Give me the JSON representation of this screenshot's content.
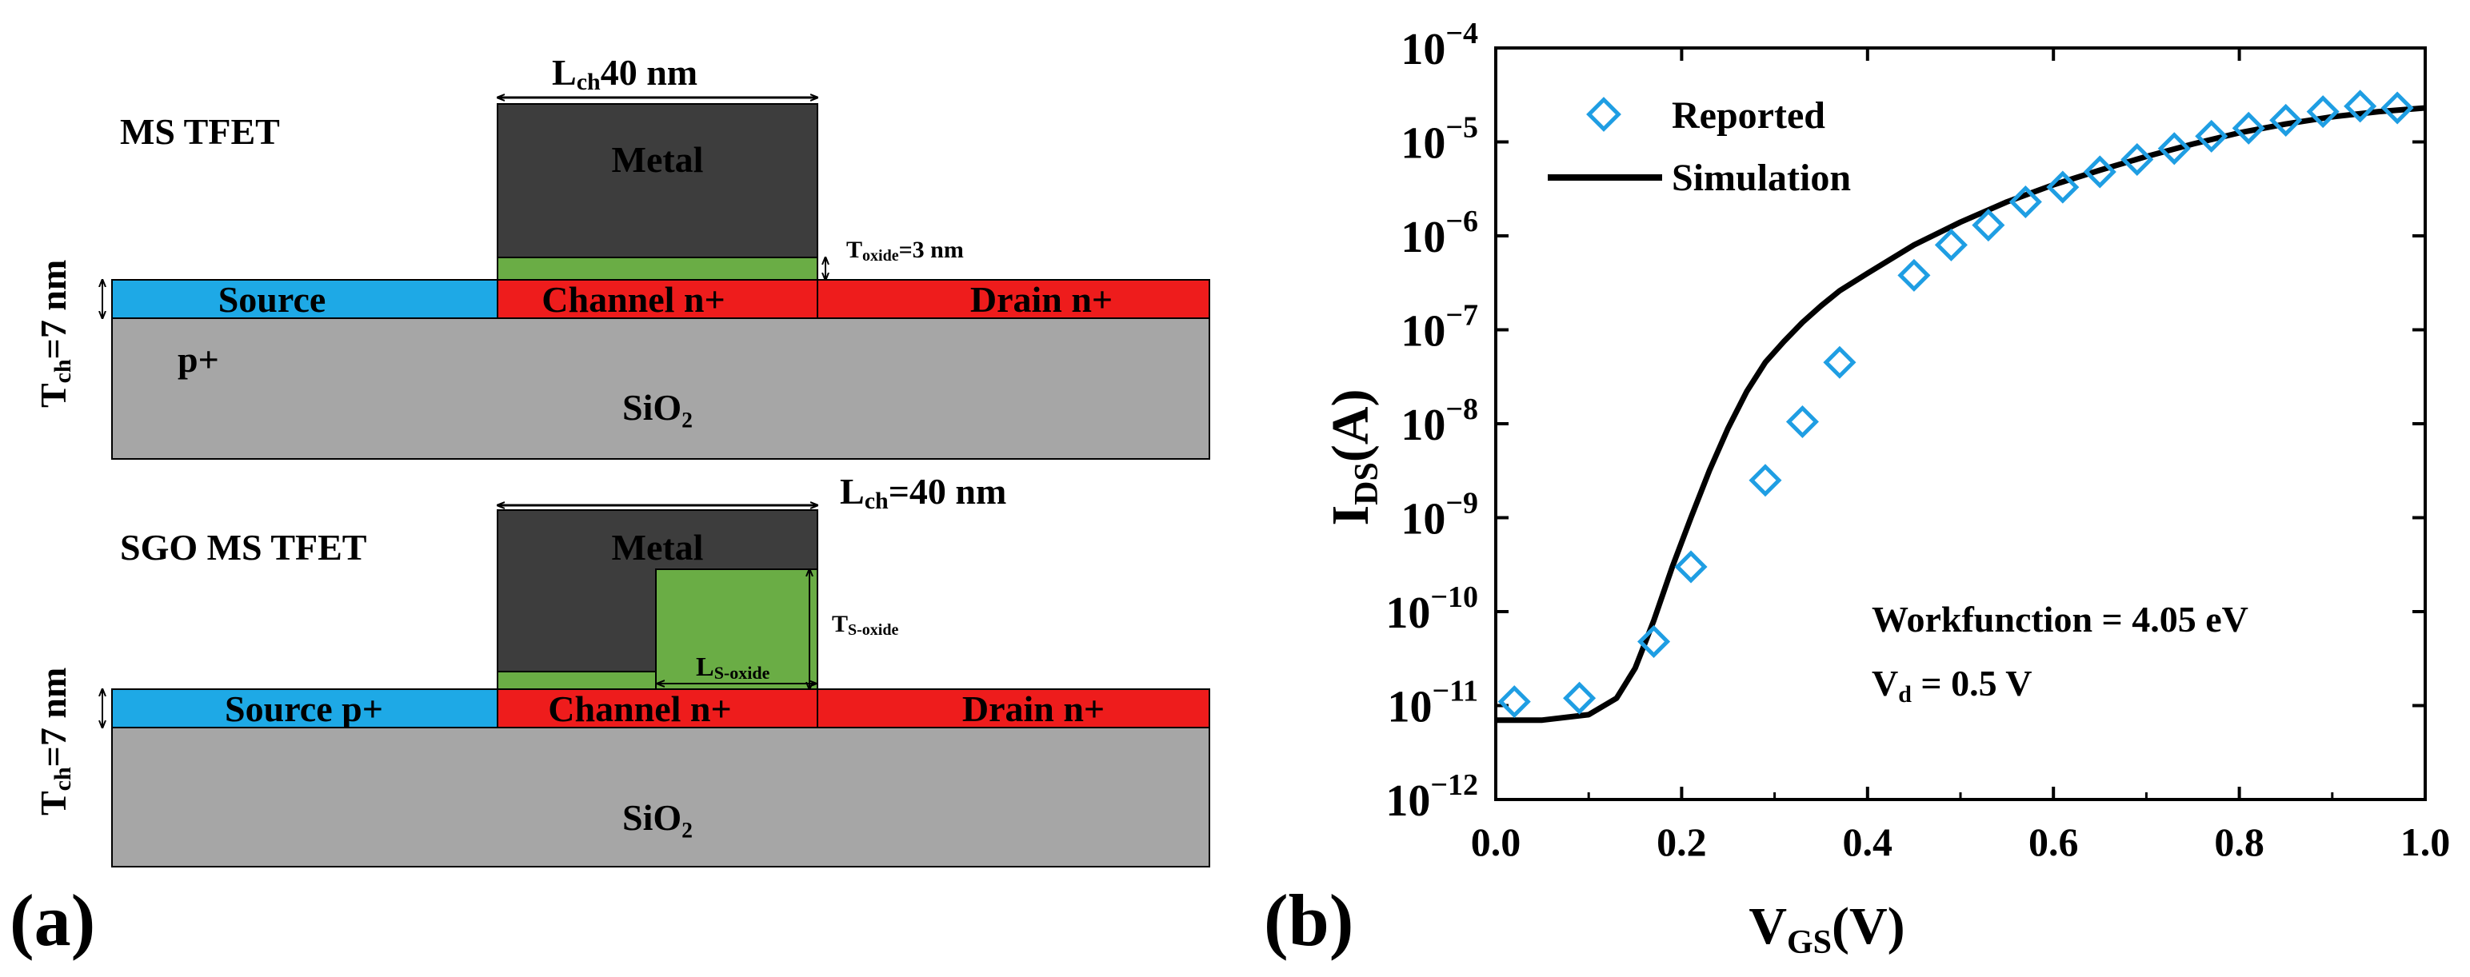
{
  "panel_a": {
    "label": "(a)",
    "device1": {
      "title": "MS TFET",
      "lch": "40 nm",
      "gate": "Metal",
      "toxide": "=3 nm",
      "tch": "=7 nm",
      "source": "Source",
      "channel": "Channel  n+",
      "drain": "Drain n+",
      "sub_doping": "p+",
      "substrate": "SiO₂"
    },
    "device2": {
      "title": "SGO MS TFET",
      "lch": "40 nm",
      "gate": "Metal",
      "ts_oxide": "S-oxide",
      "ls_oxide": "S-oxide",
      "tch": "=7 nm",
      "source": "Source p+",
      "channel": "Channel   n+",
      "drain": "Drain n+",
      "substrate": "SiO₂"
    }
  },
  "panel_b": {
    "label": "(b)",
    "annotation_wf": "Workfunction = 4.05 eV",
    "annotation_vd": "= 0.5 V"
  },
  "chart_data": {
    "type": "scatter",
    "title": "",
    "xlabel": "V_GS(V)",
    "ylabel": "I_DS(A)",
    "xlim": [
      0.0,
      1.0
    ],
    "ylim_log10": [
      -12,
      -4
    ],
    "x_ticks": [
      "0.0",
      "0.2",
      "0.4",
      "0.6",
      "0.8",
      "1.0"
    ],
    "y_tick_exponents": [
      -12,
      -11,
      -10,
      -9,
      -8,
      -7,
      -6,
      -5,
      -4
    ],
    "legend": [
      "Reported",
      "Simulation"
    ],
    "legend_position": "top-left",
    "series": [
      {
        "name": "Reported",
        "style": "open-diamond",
        "color": "#1f9ee3",
        "x": [
          0.02,
          0.09,
          0.17,
          0.21,
          0.29,
          0.33,
          0.37,
          0.45,
          0.49,
          0.53,
          0.57,
          0.61,
          0.65,
          0.69,
          0.73,
          0.77,
          0.81,
          0.85,
          0.89,
          0.93,
          0.97
        ],
        "y": [
          1.1e-11,
          1.2e-11,
          4.8e-11,
          3e-10,
          2.5e-09,
          1.05e-08,
          4.5e-08,
          3.8e-07,
          8e-07,
          1.3e-06,
          2.3e-06,
          3.3e-06,
          4.8e-06,
          6.5e-06,
          8.5e-06,
          1.15e-05,
          1.4e-05,
          1.7e-05,
          2.1e-05,
          2.4e-05,
          2.3e-05
        ]
      },
      {
        "name": "Simulation",
        "style": "line",
        "color": "#000000",
        "x": [
          0.0,
          0.05,
          0.1,
          0.13,
          0.15,
          0.17,
          0.19,
          0.21,
          0.23,
          0.25,
          0.27,
          0.29,
          0.31,
          0.33,
          0.35,
          0.37,
          0.4,
          0.45,
          0.5,
          0.55,
          0.6,
          0.65,
          0.7,
          0.75,
          0.8,
          0.85,
          0.9,
          0.95,
          1.0
        ],
        "y": [
          7e-12,
          7e-12,
          8e-12,
          1.2e-11,
          2.5e-11,
          8e-11,
          3e-10,
          1e-09,
          3.2e-09,
          9e-09,
          2.2e-08,
          4.5e-08,
          7.5e-08,
          1.2e-07,
          1.8e-07,
          2.6e-07,
          4e-07,
          8e-07,
          1.4e-06,
          2.3e-06,
          3.5e-06,
          5e-06,
          7e-06,
          9.5e-06,
          1.25e-05,
          1.55e-05,
          1.85e-05,
          2.1e-05,
          2.3e-05
        ]
      }
    ]
  }
}
